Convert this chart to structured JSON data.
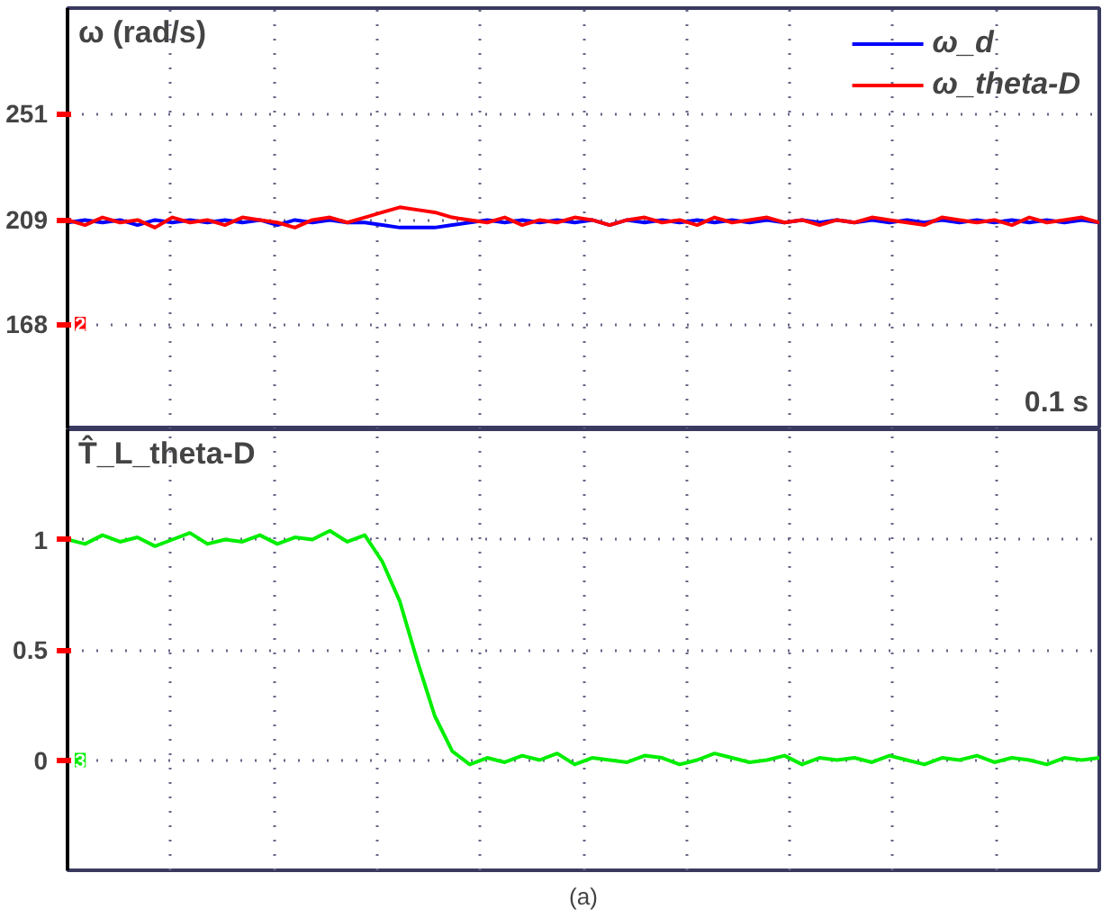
{
  "chart_data": [
    {
      "type": "line",
      "ylabel": "ω (rad/s)",
      "categories": [
        null,
        null,
        null,
        null,
        null,
        null,
        null,
        null,
        null,
        null,
        null,
        null,
        null,
        null,
        null,
        null,
        null,
        null,
        null,
        null,
        null,
        null,
        null,
        null,
        null,
        null,
        null,
        null,
        null,
        null,
        null,
        null,
        null,
        null,
        null,
        null,
        null,
        null,
        null,
        null,
        null,
        null,
        null,
        null,
        null,
        null,
        null,
        null,
        null,
        null,
        null,
        null,
        null,
        null,
        null,
        null,
        null,
        null,
        null,
        null
      ],
      "series": [
        {
          "name": "ω_d",
          "color": "#0000ff",
          "values": [
            208,
            209,
            208,
            209,
            207,
            209,
            208,
            209,
            208,
            209,
            208,
            209,
            207,
            209,
            208,
            209,
            208,
            208,
            207,
            206,
            206,
            206,
            207,
            208,
            209,
            208,
            209,
            208,
            209,
            208,
            209,
            207,
            209,
            208,
            209,
            208,
            209,
            208,
            209,
            208,
            209,
            208,
            209,
            208,
            209,
            208,
            209,
            208,
            209,
            208,
            209,
            208,
            209,
            208,
            209,
            208,
            209,
            208,
            209,
            208
          ]
        },
        {
          "name": "ω_theta-D",
          "color": "#ff0000",
          "values": [
            209,
            207,
            210,
            208,
            209,
            206,
            210,
            208,
            209,
            207,
            210,
            209,
            208,
            206,
            209,
            210,
            208,
            210,
            212,
            214,
            213,
            212,
            210,
            209,
            208,
            210,
            207,
            209,
            208,
            210,
            209,
            207,
            209,
            210,
            208,
            209,
            207,
            210,
            208,
            209,
            210,
            208,
            209,
            207,
            209,
            208,
            210,
            209,
            208,
            207,
            210,
            209,
            208,
            209,
            207,
            210,
            208,
            209,
            210,
            208
          ]
        }
      ],
      "ylim": [
        126.5,
        292.5
      ],
      "yticks": [
        168,
        209,
        251
      ],
      "grid": true,
      "legend": "top right",
      "tick_labels": "y",
      "line_style": "solid",
      "marker": "none",
      "annotations": [
        "0.1 s",
        {
          "text": "2",
          "y": 168
        }
      ]
    },
    {
      "type": "line",
      "ylabel": "T̂_L_theta-D",
      "categories": [
        null,
        null,
        null,
        null,
        null,
        null,
        null,
        null,
        null,
        null,
        null,
        null,
        null,
        null,
        null,
        null,
        null,
        null,
        null,
        null,
        null,
        null,
        null,
        null,
        null,
        null,
        null,
        null,
        null,
        null,
        null,
        null,
        null,
        null,
        null,
        null,
        null,
        null,
        null,
        null,
        null,
        null,
        null,
        null,
        null,
        null,
        null,
        null,
        null,
        null,
        null,
        null,
        null,
        null,
        null,
        null,
        null,
        null,
        null,
        null
      ],
      "series": [
        {
          "color": "#00ee00",
          "values": [
            1.0,
            0.98,
            1.02,
            0.99,
            1.01,
            0.97,
            1.0,
            1.03,
            0.98,
            1.0,
            0.99,
            1.02,
            0.98,
            1.01,
            1.0,
            1.04,
            0.99,
            1.02,
            0.9,
            0.72,
            0.45,
            0.2,
            0.04,
            -0.02,
            0.01,
            -0.01,
            0.02,
            0.0,
            0.03,
            -0.02,
            0.01,
            0.0,
            -0.01,
            0.02,
            0.01,
            -0.02,
            0.0,
            0.03,
            0.01,
            -0.01,
            0.0,
            0.02,
            -0.02,
            0.01,
            0.0,
            0.01,
            -0.01,
            0.02,
            0.0,
            -0.02,
            0.01,
            0.0,
            0.02,
            -0.01,
            0.01,
            0.0,
            -0.02,
            0.01,
            0.0,
            0.01
          ]
        }
      ],
      "ylim": [
        -0.5,
        1.5
      ],
      "yticks": [
        0,
        0.5,
        1
      ],
      "grid": true,
      "tick_labels": "y",
      "line_style": "solid",
      "marker": "none",
      "annotations": [
        {
          "text": "3",
          "y": 0
        },
        "(a)"
      ]
    }
  ]
}
